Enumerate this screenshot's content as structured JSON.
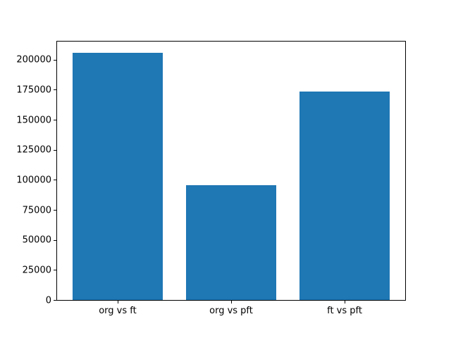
{
  "chart_data": {
    "type": "bar",
    "title": "",
    "xlabel": "",
    "ylabel": "",
    "categories": [
      "org vs ft",
      "org vs pft",
      "ft vs pft"
    ],
    "values": [
      206000,
      95800,
      173900
    ],
    "ylim": [
      0,
      216300
    ],
    "yticks": [
      0,
      25000,
      50000,
      75000,
      100000,
      125000,
      150000,
      175000,
      200000
    ],
    "grid": false,
    "legend": null,
    "bar_color": "#1f77b4",
    "spine_color": "#000000",
    "tick_label_color": "#000000",
    "background_color": "#ffffff"
  }
}
